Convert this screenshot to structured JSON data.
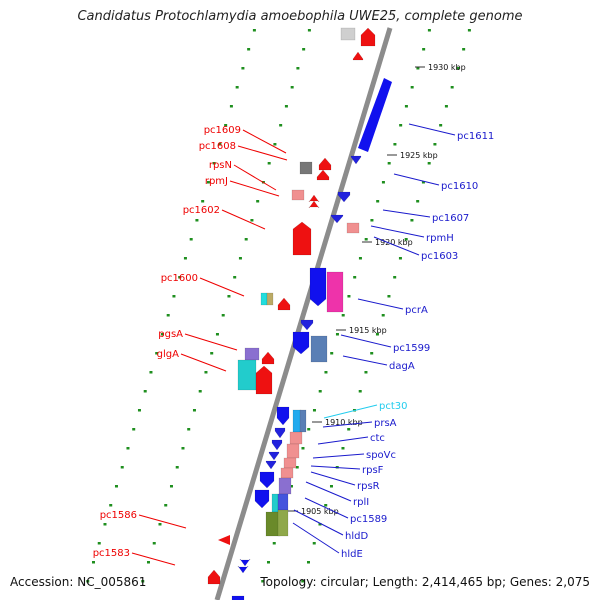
{
  "title": "Candidatus Protochlamydia amoebophila UWE25, complete genome",
  "footer": {
    "accession": "Accession: NC_005861",
    "topology": "Topology: circular; Length: 2,414,465 bp; Genes: 2,075"
  },
  "colors": {
    "backbone": "#8c8c8c",
    "left_label": "#ee0000",
    "right_label": "#1a1acc",
    "rna_label": "#22ccee",
    "tick_dot": "#1f8f1f"
  },
  "ticks": [
    "1930 kbp",
    "1925 kbp",
    "1920 kbp",
    "1915 kbp",
    "1910 kbp",
    "1905 kbp"
  ],
  "left_genes": [
    "pc1609",
    "pc1608",
    "rpsN",
    "rpmJ",
    "pc1602",
    "pc1600",
    "pgsA",
    "glgA",
    "pc1586",
    "pc1583"
  ],
  "right_genes": [
    "pc1611",
    "pc1610",
    "pc1607",
    "rpmH",
    "pc1603",
    "pcrA",
    "pc1599",
    "dagA",
    "pct30",
    "prsA",
    "ctc",
    "spoVc",
    "rpsF",
    "rpsR",
    "rplI",
    "pc1589",
    "hldD",
    "hldE"
  ]
}
